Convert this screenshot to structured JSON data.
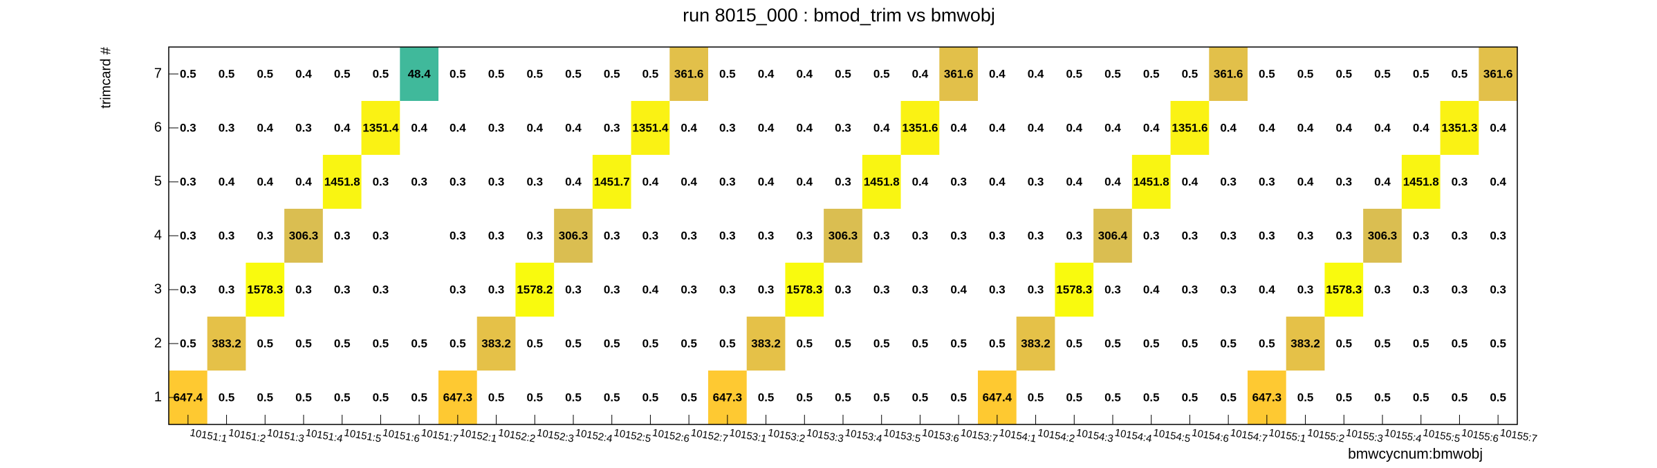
{
  "chart_data": {
    "type": "heatmap",
    "title": "run 8015_000 : bmod_trim vs bmwobj",
    "x_label": "bmwcycnum:bmwobj",
    "y_label": "trimcard #",
    "palette": "bird",
    "log_z": true,
    "zlim": [
      1,
      1600
    ],
    "x_categories": [
      "10151:1",
      "10151:2",
      "10151:3",
      "10151:4",
      "10151:5",
      "10151:6",
      "10151:7",
      "10152:1",
      "10152:2",
      "10152:3",
      "10152:4",
      "10152:5",
      "10152:6",
      "10152:7",
      "10153:1",
      "10153:2",
      "10153:3",
      "10153:4",
      "10153:5",
      "10153:6",
      "10153:7",
      "10154:1",
      "10154:2",
      "10154:3",
      "10154:4",
      "10154:5",
      "10154:6",
      "10154:7",
      "10155:1",
      "10155:2",
      "10155:3",
      "10155:4",
      "10155:5",
      "10155:6",
      "10155:7"
    ],
    "y_categories": [
      "1",
      "2",
      "3",
      "4",
      "5",
      "6",
      "7"
    ],
    "values": [
      [
        647.4,
        0.5,
        0.5,
        0.5,
        0.5,
        0.5,
        0.5,
        647.3,
        0.5,
        0.5,
        0.5,
        0.5,
        0.5,
        0.5,
        647.3,
        0.5,
        0.5,
        0.5,
        0.5,
        0.5,
        0.5,
        647.4,
        0.5,
        0.5,
        0.5,
        0.5,
        0.5,
        0.5,
        647.3,
        0.5,
        0.5,
        0.5,
        0.5,
        0.5,
        0.5
      ],
      [
        0.5,
        383.2,
        0.5,
        0.5,
        0.5,
        0.5,
        0.5,
        0.5,
        383.2,
        0.5,
        0.5,
        0.5,
        0.5,
        0.5,
        0.5,
        383.2,
        0.5,
        0.5,
        0.5,
        0.5,
        0.5,
        0.5,
        383.2,
        0.5,
        0.5,
        0.5,
        0.5,
        0.5,
        0.5,
        383.2,
        0.5,
        0.5,
        0.5,
        0.5,
        0.5
      ],
      [
        0.3,
        0.3,
        1578.3,
        0.3,
        0.3,
        0.3,
        null,
        0.3,
        0.3,
        1578.2,
        0.3,
        0.3,
        0.4,
        0.3,
        0.3,
        0.3,
        1578.3,
        0.3,
        0.3,
        0.3,
        0.4,
        0.3,
        0.3,
        1578.3,
        0.3,
        0.4,
        0.3,
        0.3,
        0.4,
        0.3,
        1578.3,
        0.3,
        0.3,
        0.3,
        0.3
      ],
      [
        0.3,
        0.3,
        0.3,
        306.3,
        0.3,
        0.3,
        null,
        0.3,
        0.3,
        0.3,
        306.3,
        0.3,
        0.3,
        0.3,
        0.3,
        0.3,
        0.3,
        306.3,
        0.3,
        0.3,
        0.3,
        0.3,
        0.3,
        0.3,
        306.4,
        0.3,
        0.3,
        0.3,
        0.3,
        0.3,
        0.3,
        306.3,
        0.3,
        0.3,
        0.3
      ],
      [
        0.3,
        0.4,
        0.4,
        0.4,
        1451.8,
        0.3,
        0.3,
        0.3,
        0.3,
        0.3,
        0.4,
        1451.7,
        0.4,
        0.4,
        0.3,
        0.4,
        0.4,
        0.3,
        1451.8,
        0.4,
        0.3,
        0.4,
        0.3,
        0.4,
        0.4,
        1451.8,
        0.4,
        0.3,
        0.3,
        0.4,
        0.3,
        0.4,
        1451.8,
        0.3,
        0.4
      ],
      [
        0.3,
        0.3,
        0.4,
        0.3,
        0.4,
        1351.4,
        0.4,
        0.4,
        0.3,
        0.4,
        0.4,
        0.3,
        1351.4,
        0.4,
        0.3,
        0.4,
        0.4,
        0.3,
        0.4,
        1351.6,
        0.4,
        0.4,
        0.4,
        0.4,
        0.4,
        0.4,
        1351.6,
        0.4,
        0.4,
        0.4,
        0.4,
        0.4,
        0.4,
        1351.3,
        0.4
      ],
      [
        0.5,
        0.5,
        0.5,
        0.4,
        0.5,
        0.5,
        48.4,
        0.5,
        0.5,
        0.5,
        0.5,
        0.5,
        0.5,
        361.6,
        0.5,
        0.4,
        0.4,
        0.5,
        0.5,
        0.4,
        361.6,
        0.4,
        0.4,
        0.5,
        0.5,
        0.5,
        0.5,
        361.6,
        0.5,
        0.5,
        0.5,
        0.5,
        0.5,
        0.5,
        361.6
      ]
    ]
  }
}
